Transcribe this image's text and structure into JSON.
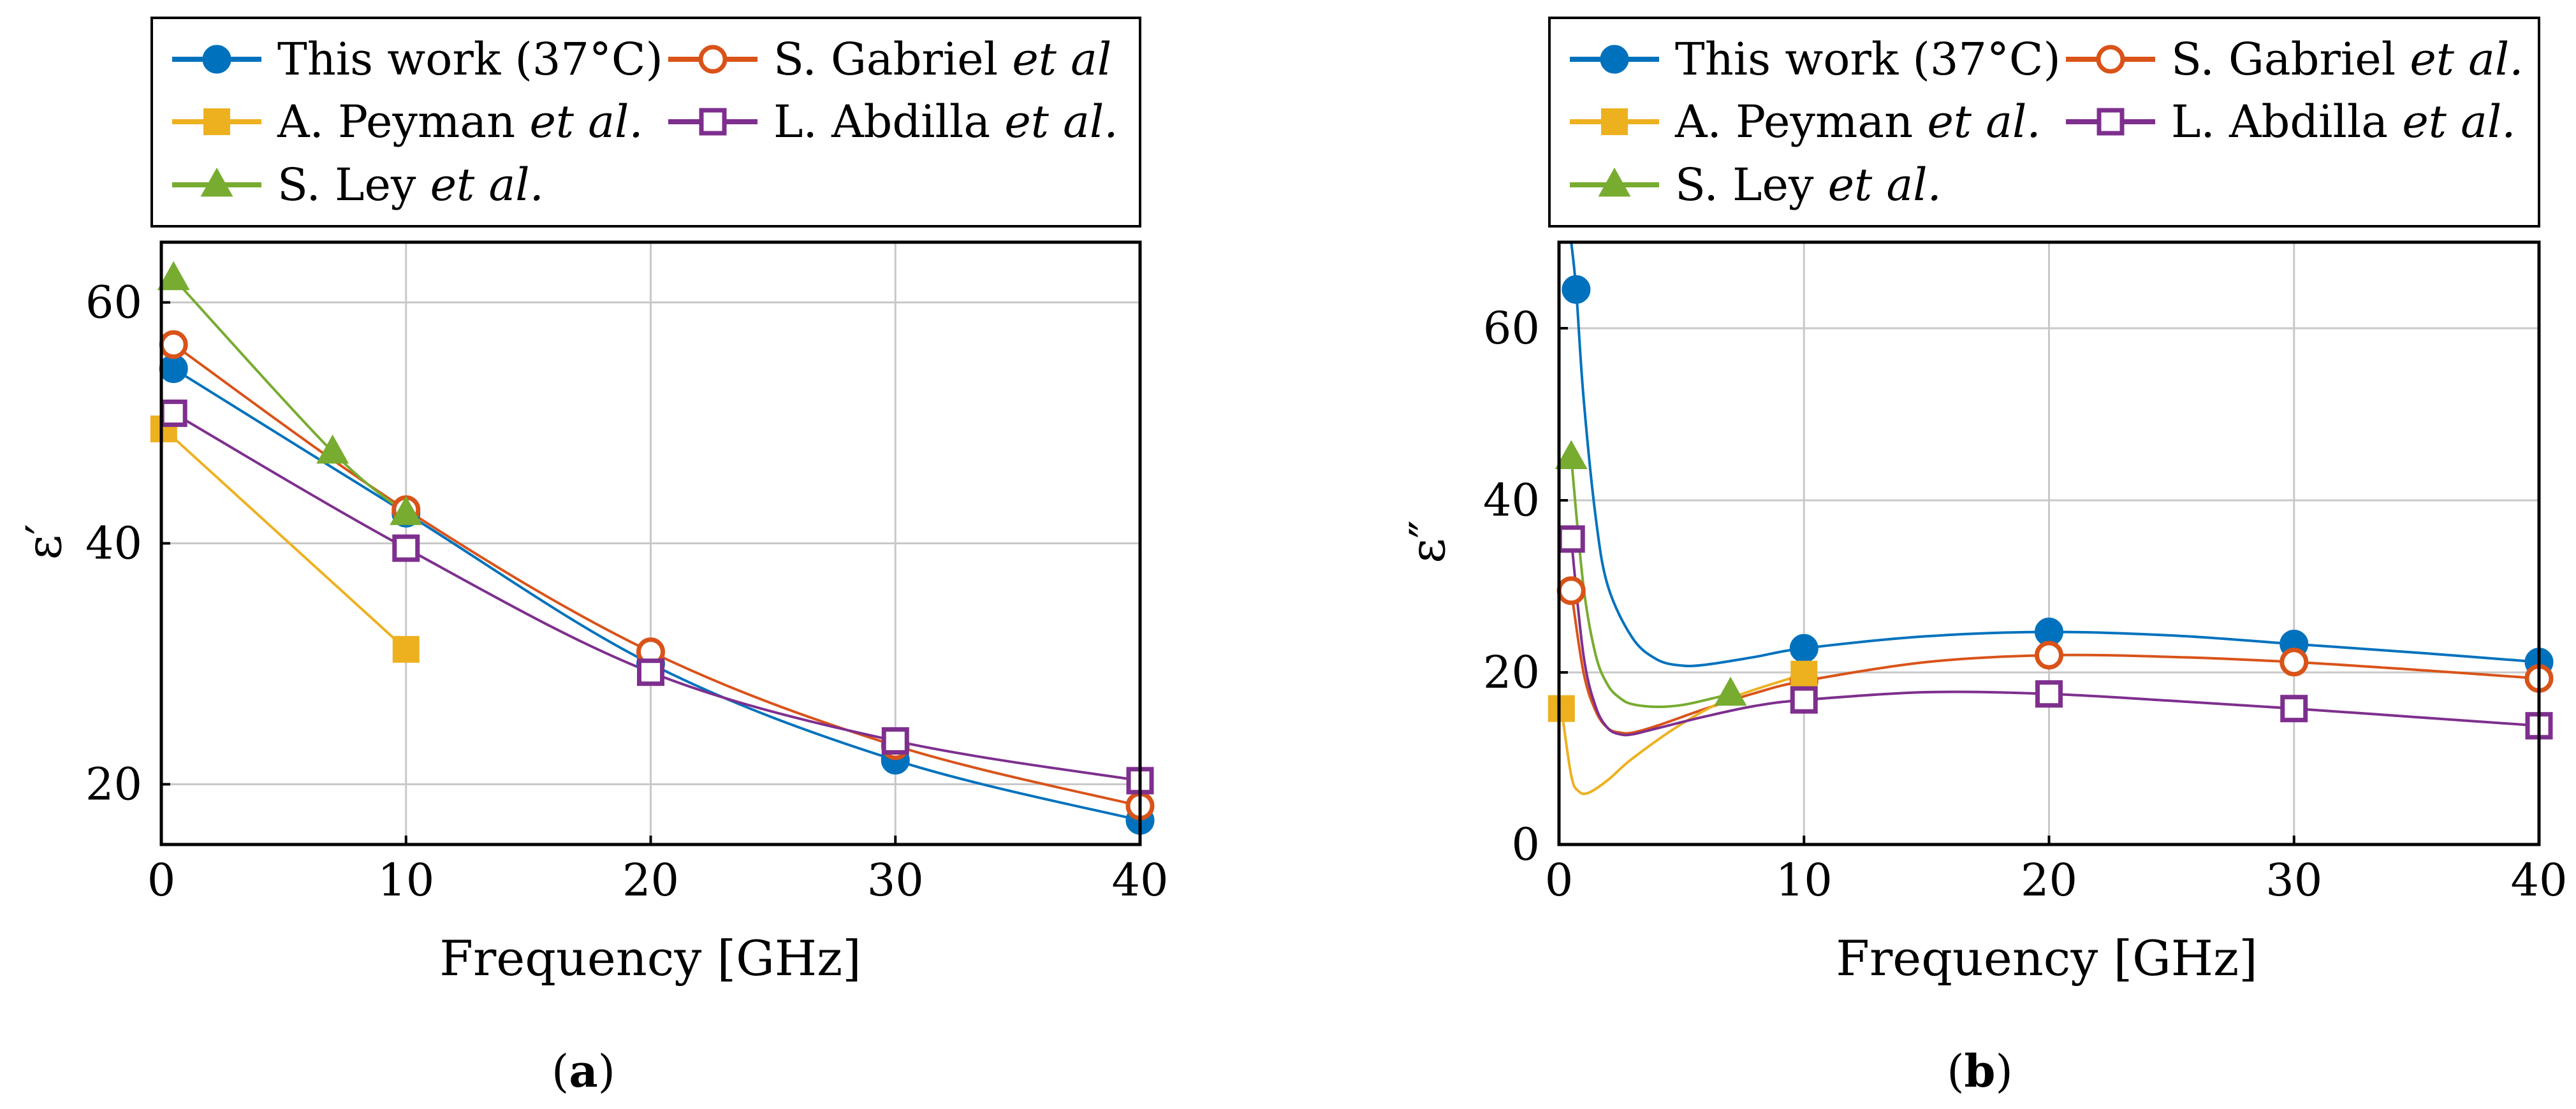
{
  "series_styles": [
    {
      "key": "this_work",
      "color": "#0072BD",
      "marker": "filled-circle"
    },
    {
      "key": "gabriel",
      "color": "#D95319",
      "marker": "open-circle"
    },
    {
      "key": "peyman",
      "color": "#EDB120",
      "marker": "filled-square"
    },
    {
      "key": "abdilla",
      "color": "#7E2F8E",
      "marker": "open-square"
    },
    {
      "key": "ley",
      "color": "#77AC30",
      "marker": "filled-triangle"
    }
  ],
  "chart_data": [
    {
      "type": "line",
      "panel_label": "a",
      "xlabel": "Frequency [GHz]",
      "ylabel": "ε′",
      "xlim": [
        0,
        40
      ],
      "ylim": [
        15,
        65
      ],
      "xticks": [
        0,
        10,
        20,
        30,
        40
      ],
      "yticks": [
        20,
        40,
        60
      ],
      "grid": true,
      "legend": {
        "placement": "top",
        "entries": [
          {
            "key": "this_work",
            "text": "This work (37°C)",
            "italic": ""
          },
          {
            "key": "gabriel",
            "text": "S. Gabriel ",
            "italic": "et al"
          },
          {
            "key": "peyman",
            "text": "A. Peyman ",
            "italic": "et al."
          },
          {
            "key": "abdilla",
            "text": "L. Abdilla ",
            "italic": "et al."
          },
          {
            "key": "ley",
            "text": "S. Ley ",
            "italic": "et al."
          }
        ]
      },
      "series": [
        {
          "key": "this_work",
          "name": "This work (37°C)",
          "points": [
            [
              0.5,
              54.5
            ],
            [
              10,
              42.5
            ],
            [
              20,
              30.0
            ],
            [
              30,
              22.0
            ],
            [
              40,
              17.0
            ]
          ]
        },
        {
          "key": "gabriel",
          "name": "S. Gabriel et al",
          "points": [
            [
              0.5,
              56.5
            ],
            [
              10,
              42.8
            ],
            [
              20,
              31.0
            ],
            [
              30,
              23.2
            ],
            [
              40,
              18.2
            ]
          ]
        },
        {
          "key": "peyman",
          "name": "A. Peyman et al.",
          "points": [
            [
              0.1,
              49.5
            ],
            [
              10,
              31.2
            ]
          ]
        },
        {
          "key": "abdilla",
          "name": "L. Abdilla et al.",
          "points": [
            [
              0.5,
              50.8
            ],
            [
              10,
              39.6
            ],
            [
              20,
              29.3
            ],
            [
              30,
              23.6
            ],
            [
              40,
              20.3
            ]
          ]
        },
        {
          "key": "ley",
          "name": "S. Ley et al.",
          "points": [
            [
              0.5,
              62.0
            ],
            [
              7,
              47.6
            ],
            [
              10,
              42.5
            ]
          ]
        }
      ]
    },
    {
      "type": "line",
      "panel_label": "b",
      "xlabel": "Frequency [GHz]",
      "ylabel": "ε″",
      "xlim": [
        0,
        40
      ],
      "ylim": [
        0,
        70
      ],
      "xticks": [
        0,
        10,
        20,
        30,
        40
      ],
      "yticks": [
        0,
        20,
        40,
        60
      ],
      "grid": true,
      "legend": {
        "placement": "top",
        "entries": [
          {
            "key": "this_work",
            "text": "This work (37°C)",
            "italic": ""
          },
          {
            "key": "gabriel",
            "text": "S. Gabriel ",
            "italic": "et al."
          },
          {
            "key": "peyman",
            "text": "A. Peyman ",
            "italic": "et al."
          },
          {
            "key": "abdilla",
            "text": "L. Abdilla ",
            "italic": "et al."
          },
          {
            "key": "ley",
            "text": "S. Ley ",
            "italic": "et al."
          }
        ]
      },
      "series": [
        {
          "key": "this_work",
          "name": "This work (37°C)",
          "points": [
            [
              0.7,
              64.5
            ],
            [
              10,
              22.8
            ],
            [
              20,
              24.7
            ],
            [
              30,
              23.3
            ],
            [
              40,
              21.2
            ]
          ],
          "curve": [
            [
              0.5,
              70
            ],
            [
              0.7,
              64.5
            ],
            [
              1,
              52
            ],
            [
              1.5,
              38
            ],
            [
              2,
              30
            ],
            [
              3,
              24
            ],
            [
              4,
              21.5
            ],
            [
              5,
              20.8
            ],
            [
              6,
              20.9
            ],
            [
              8,
              21.8
            ],
            [
              10,
              22.8
            ],
            [
              15,
              24.2
            ],
            [
              20,
              24.7
            ],
            [
              25,
              24.3
            ],
            [
              30,
              23.3
            ],
            [
              35,
              22.3
            ],
            [
              40,
              21.2
            ]
          ]
        },
        {
          "key": "gabriel",
          "name": "S. Gabriel et al.",
          "points": [
            [
              0.5,
              29.5
            ],
            [
              10,
              19.0
            ],
            [
              20,
              22.0
            ],
            [
              30,
              21.2
            ],
            [
              40,
              19.3
            ]
          ],
          "curve": [
            [
              0.5,
              29.5
            ],
            [
              1,
              20
            ],
            [
              1.5,
              15.5
            ],
            [
              2,
              13.5
            ],
            [
              2.5,
              13.0
            ],
            [
              3,
              13.0
            ],
            [
              4,
              13.8
            ],
            [
              6,
              15.8
            ],
            [
              8,
              17.6
            ],
            [
              10,
              19.0
            ],
            [
              15,
              21.2
            ],
            [
              20,
              22.0
            ],
            [
              25,
              21.8
            ],
            [
              30,
              21.2
            ],
            [
              35,
              20.3
            ],
            [
              40,
              19.3
            ]
          ]
        },
        {
          "key": "peyman",
          "name": "A. Peyman et al.",
          "points": [
            [
              0.1,
              15.8
            ],
            [
              10,
              19.8
            ]
          ],
          "curve": [
            [
              0.1,
              15.8
            ],
            [
              0.5,
              8
            ],
            [
              0.8,
              6.2
            ],
            [
              1.2,
              6.0
            ],
            [
              2,
              7.5
            ],
            [
              3,
              10
            ],
            [
              5,
              14
            ],
            [
              7,
              17
            ],
            [
              10,
              19.8
            ]
          ]
        },
        {
          "key": "abdilla",
          "name": "L. Abdilla et al.",
          "points": [
            [
              0.5,
              35.5
            ],
            [
              10,
              16.8
            ],
            [
              20,
              17.5
            ],
            [
              30,
              15.8
            ],
            [
              40,
              13.8
            ]
          ],
          "curve": [
            [
              0.5,
              35.5
            ],
            [
              1,
              22
            ],
            [
              1.5,
              16
            ],
            [
              2,
              13.5
            ],
            [
              2.5,
              12.8
            ],
            [
              3,
              12.8
            ],
            [
              4,
              13.5
            ],
            [
              6,
              14.9
            ],
            [
              8,
              16.1
            ],
            [
              10,
              16.8
            ],
            [
              15,
              17.7
            ],
            [
              20,
              17.5
            ],
            [
              25,
              16.7
            ],
            [
              30,
              15.8
            ],
            [
              35,
              14.8
            ],
            [
              40,
              13.8
            ]
          ]
        },
        {
          "key": "ley",
          "name": "S. Ley et al.",
          "points": [
            [
              0.5,
              45.0
            ],
            [
              7,
              17.5
            ]
          ],
          "curve": [
            [
              0.5,
              45.0
            ],
            [
              1,
              30
            ],
            [
              1.5,
              22
            ],
            [
              2,
              18.5
            ],
            [
              2.5,
              17
            ],
            [
              3,
              16.3
            ],
            [
              4,
              16.0
            ],
            [
              5,
              16.2
            ],
            [
              6,
              16.8
            ],
            [
              7,
              17.5
            ]
          ]
        }
      ]
    }
  ]
}
